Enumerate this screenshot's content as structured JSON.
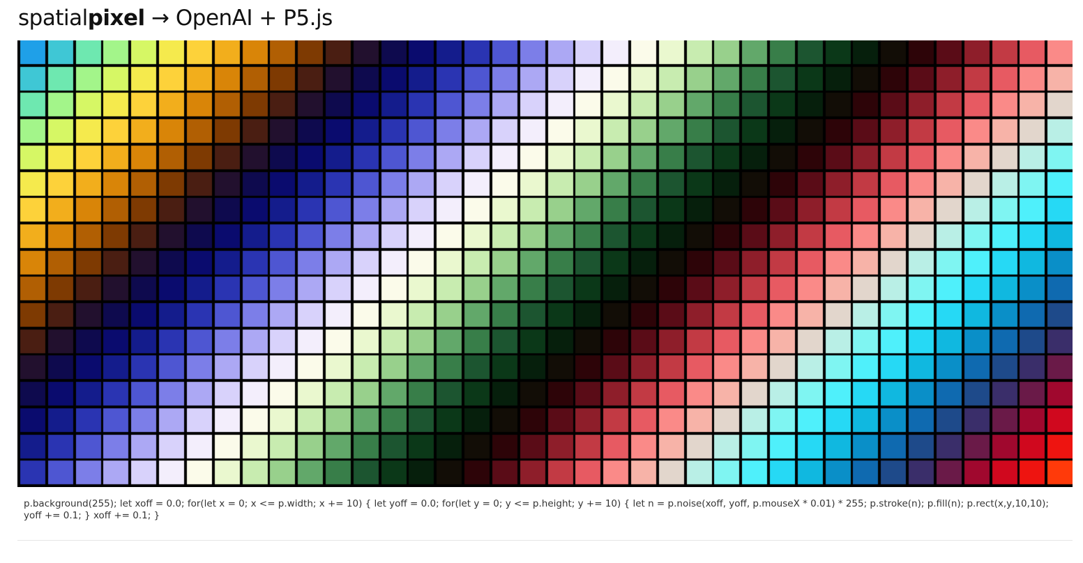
{
  "header": {
    "brand_regular": "spatial",
    "brand_bold": "pixel",
    "arrow": "→",
    "subtitle": "OpenAI + P5.js"
  },
  "sketch": {
    "columns": 38,
    "rows": 17,
    "palette_stops": [
      "#ffffff",
      "#6a66dc",
      "#000033",
      "#b45c00",
      "#ffd64a",
      "#2aa0e0"
    ],
    "cell_colors_cycle": [
      "#1fa0e8",
      "#3fc7d5",
      "#6ee8b0",
      "#a3f58a",
      "#d6f765",
      "#f5ea4d",
      "#fdd23a",
      "#f2ae1c",
      "#d98508",
      "#b15f03",
      "#7e3a02",
      "#4a1e12",
      "#22102e",
      "#0e0a4e",
      "#0a0b6e",
      "#141c8c",
      "#2a34b2",
      "#4e56d2",
      "#7c7ee8",
      "#aca8f4",
      "#d8d2fb",
      "#f3eefc",
      "#fbfbea",
      "#eaf8cf",
      "#c8ecb0",
      "#98d08c",
      "#62a86a",
      "#387e49",
      "#1c5530",
      "#0b3818",
      "#061f0c",
      "#120d06",
      "#2d0408",
      "#5a0c17",
      "#8e1e2a",
      "#c23a44",
      "#e75a62",
      "#fa8a88",
      "#f7b3a8",
      "#e2d6cc",
      "#b9efe6",
      "#7ff5f2",
      "#4ff0fb",
      "#26d9f5",
      "#10b8e0",
      "#0a8fc8",
      "#0f6ab0",
      "#1e4a8a",
      "#3a2e6a",
      "#6a1a48",
      "#a0082e",
      "#d0081e",
      "#ee1410",
      "#ff3a0a"
    ]
  },
  "code_text": "p.background(255); let xoff = 0.0; for(let x = 0; x <= p.width; x += 10) { let yoff = 0.0; for(let y = 0; y <= p.height; y += 10) { let n = p.noise(xoff, yoff, p.mouseX * 0.01) * 255; p.stroke(n); p.fill(n); p.rect(x,y,10,10); yoff += 0.1; } xoff += 0.1; }"
}
